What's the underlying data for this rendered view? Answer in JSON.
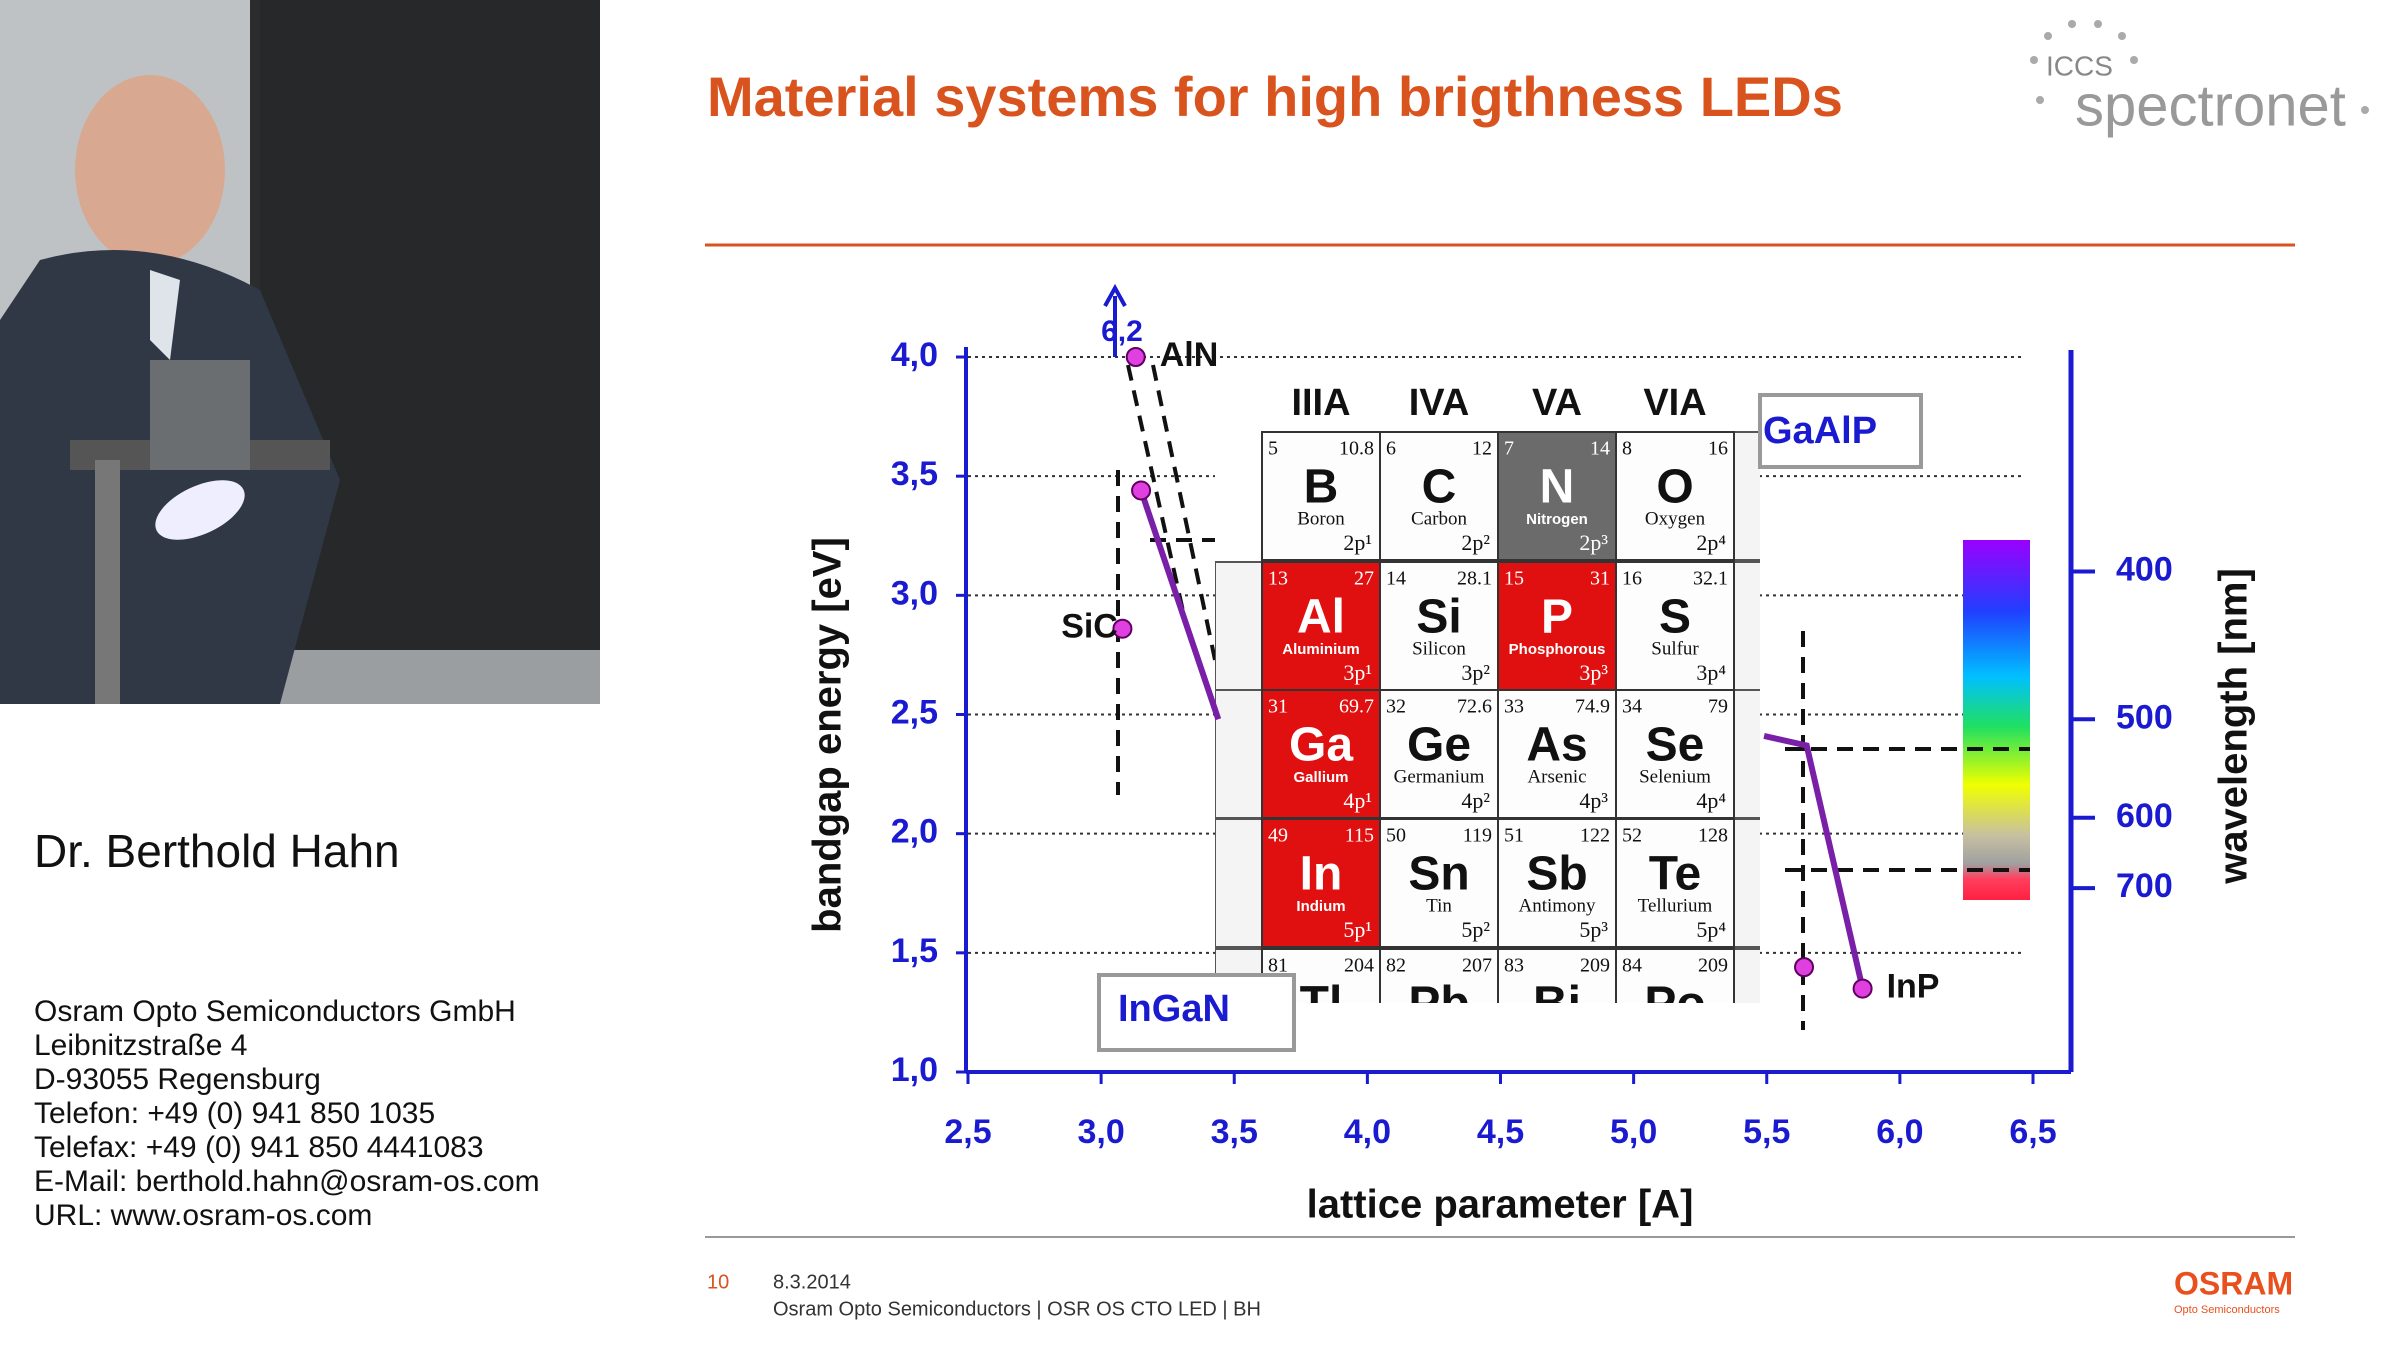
{
  "speaker": {
    "name": "Dr. Berthold Hahn",
    "contact": [
      "Osram Opto Semiconductors GmbH",
      "Leibnitzstraße 4",
      "D-93055 Regensburg",
      "Telefon: +49 (0) 941 850 1035",
      "Telefax: +49 (0) 941 850 4441083",
      "E-Mail: berthold.hahn@osram-os.com",
      "URL: www.osram-os.com"
    ]
  },
  "logo": {
    "small": "ICCS",
    "name": "spectronet"
  },
  "slide": {
    "title": "Material systems for high brigthness LEDs",
    "footer": {
      "page": "10",
      "date": "8.3.2014",
      "org": "Osram Opto Semiconductors | OSR OS CTO  LED |  BH",
      "brand": "OSRAM",
      "brand_sub": "Opto Semiconductors"
    }
  },
  "periodic_table": {
    "groups": [
      "IIIA",
      "IVA",
      "VA",
      "VIA"
    ],
    "elements": [
      [
        {
          "number": 5,
          "mass": 10.8,
          "symbol": "B",
          "name": "Boron",
          "config": "2p¹"
        },
        {
          "number": 6,
          "mass": 12.0,
          "symbol": "C",
          "name": "Carbon",
          "config": "2p²"
        },
        {
          "number": 7,
          "mass": 14.0,
          "symbol": "N",
          "name": "Nitrogen",
          "config": "2p³",
          "color": "#6b6b6b"
        },
        {
          "number": 8,
          "mass": 16.0,
          "symbol": "O",
          "name": "Oxygen",
          "config": "2p⁴"
        }
      ],
      [
        {
          "number": 13,
          "mass": 27.0,
          "symbol": "Al",
          "name": "Aluminium",
          "config": "3p¹",
          "color": "#e01010"
        },
        {
          "number": 14,
          "mass": 28.1,
          "symbol": "Si",
          "name": "Silicon",
          "config": "3p²"
        },
        {
          "number": 15,
          "mass": 31.0,
          "symbol": "P",
          "name": "Phosphorous",
          "config": "3p³",
          "color": "#e01010"
        },
        {
          "number": 16,
          "mass": 32.1,
          "symbol": "S",
          "name": "Sulfur",
          "config": "3p⁴"
        }
      ],
      [
        {
          "number": 31,
          "mass": 69.7,
          "symbol": "Ga",
          "name": "Gallium",
          "config": "4p¹",
          "color": "#e01010"
        },
        {
          "number": 32,
          "mass": 72.6,
          "symbol": "Ge",
          "name": "Germanium",
          "config": "4p²"
        },
        {
          "number": 33,
          "mass": 74.9,
          "symbol": "As",
          "name": "Arsenic",
          "config": "4p³"
        },
        {
          "number": 34,
          "mass": 79.0,
          "symbol": "Se",
          "name": "Selenium",
          "config": "4p⁴"
        }
      ],
      [
        {
          "number": 49,
          "mass": 115,
          "symbol": "In",
          "name": "Indium",
          "config": "5p¹",
          "color": "#e01010"
        },
        {
          "number": 50,
          "mass": 119,
          "symbol": "Sn",
          "name": "Tin",
          "config": "5p²"
        },
        {
          "number": 51,
          "mass": 122,
          "symbol": "Sb",
          "name": "Antimony",
          "config": "5p³"
        },
        {
          "number": 52,
          "mass": 128,
          "symbol": "Te",
          "name": "Tellurium",
          "config": "5p⁴"
        }
      ],
      [
        {
          "number": 81,
          "mass": 204,
          "symbol": "Tl"
        },
        {
          "number": 82,
          "mass": 207,
          "symbol": "Pb"
        },
        {
          "number": 83,
          "mass": 209,
          "symbol": "Bi"
        },
        {
          "number": 84,
          "mass": 209,
          "symbol": "Po"
        }
      ]
    ]
  },
  "chart_data": {
    "type": "scatter",
    "xlabel": "lattice parameter [A]",
    "ylabel": "bandgap energy  [eV]",
    "y2label": "wavelength  [nm]",
    "xlim": [
      2.5,
      6.5
    ],
    "xticks": [
      {
        "value": 2.5,
        "label": "2,5"
      },
      {
        "value": 3.0,
        "label": "3,0"
      },
      {
        "value": 3.5,
        "label": "3,5"
      },
      {
        "value": 4.0,
        "label": "4,0"
      },
      {
        "value": 4.5,
        "label": "4,5"
      },
      {
        "value": 5.0,
        "label": "5,0"
      },
      {
        "value": 5.5,
        "label": "5,5"
      },
      {
        "value": 6.0,
        "label": "6,0"
      },
      {
        "value": 6.5,
        "label": "6,5"
      }
    ],
    "ylim": [
      1.0,
      4.0
    ],
    "yticks": [
      {
        "value": 1.0,
        "label": "1,0"
      },
      {
        "value": 1.5,
        "label": "1,5"
      },
      {
        "value": 2.0,
        "label": "2,0"
      },
      {
        "value": 2.5,
        "label": "2,5"
      },
      {
        "value": 3.0,
        "label": "3,0"
      },
      {
        "value": 3.5,
        "label": "3,5"
      },
      {
        "value": 4.0,
        "label": "4,0"
      }
    ],
    "y2lim": [
      310,
      1240
    ],
    "y2scale": "reciprocal",
    "y2ticks": [
      400,
      500,
      600,
      700
    ],
    "grid": true,
    "points": {
      "x": [
        3.13,
        3.15,
        3.08,
        5.64,
        5.86
      ],
      "y": [
        4.0,
        3.44,
        2.86,
        1.44,
        1.35
      ],
      "color": "#e040e0"
    },
    "series": [
      {
        "name": "InGaN",
        "color": "#7a1fa8",
        "x": [
          3.15,
          3.44
        ],
        "values": [
          3.44,
          2.48
        ]
      },
      {
        "name": "GaAlP",
        "color": "#7a1fa8",
        "x": [
          5.49,
          5.65,
          5.86
        ],
        "values": [
          2.41,
          2.37,
          1.35
        ]
      }
    ],
    "annotations": [
      {
        "text": "6,2",
        "x": 3.0,
        "y": 4.1
      },
      {
        "text": "AlN",
        "x": 3.22,
        "y": 4.0
      },
      {
        "text": "SiC",
        "x": 2.85,
        "y": 2.86
      },
      {
        "text": "InP",
        "x": 5.95,
        "y": 1.35
      }
    ]
  }
}
